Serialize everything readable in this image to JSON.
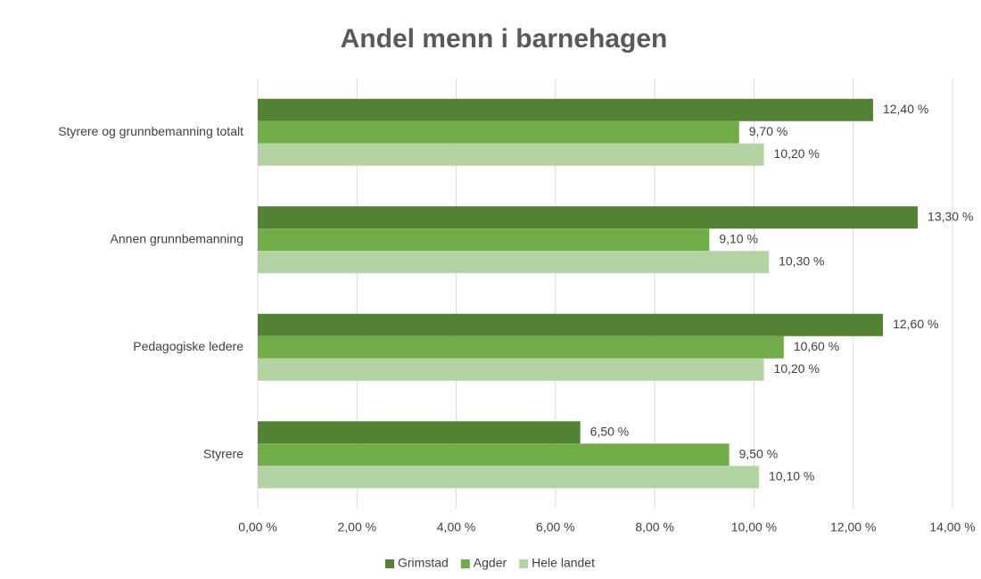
{
  "chart_data": {
    "type": "barh",
    "title": "Andel menn i barnehagen",
    "categories": [
      "Styrere og grunnbemanning totalt",
      "Annen grunnbemanning",
      "Pedagogiske ledere",
      "Styrere"
    ],
    "series": [
      {
        "name": "Grimstad",
        "color": "#548235",
        "values": [
          12.4,
          13.3,
          12.6,
          6.5
        ],
        "value_labels": [
          "12,40 %",
          "13,30 %",
          "12,60 %",
          "6,50 %"
        ]
      },
      {
        "name": "Agder",
        "color": "#70ad47",
        "values": [
          9.7,
          9.1,
          10.6,
          9.5
        ],
        "value_labels": [
          "9,70 %",
          "9,10 %",
          "10,60 %",
          "9,50 %"
        ]
      },
      {
        "name": "Hele landet",
        "color": "#b4d3a3",
        "values": [
          10.2,
          10.3,
          10.2,
          10.1
        ],
        "value_labels": [
          "10,20 %",
          "10,30 %",
          "10,20 %",
          "10,10 %"
        ]
      }
    ],
    "xlim": [
      0,
      14
    ],
    "xticks": [
      {
        "value": 0,
        "label": "0,00 %"
      },
      {
        "value": 2,
        "label": "2,00 %"
      },
      {
        "value": 4,
        "label": "4,00 %"
      },
      {
        "value": 6,
        "label": "6,00 %"
      },
      {
        "value": 8,
        "label": "8,00 %"
      },
      {
        "value": 10,
        "label": "10,00 %"
      },
      {
        "value": 12,
        "label": "12,00 %"
      },
      {
        "value": 14,
        "label": "14,00 %"
      }
    ],
    "grid": true,
    "legend": "bottom"
  }
}
